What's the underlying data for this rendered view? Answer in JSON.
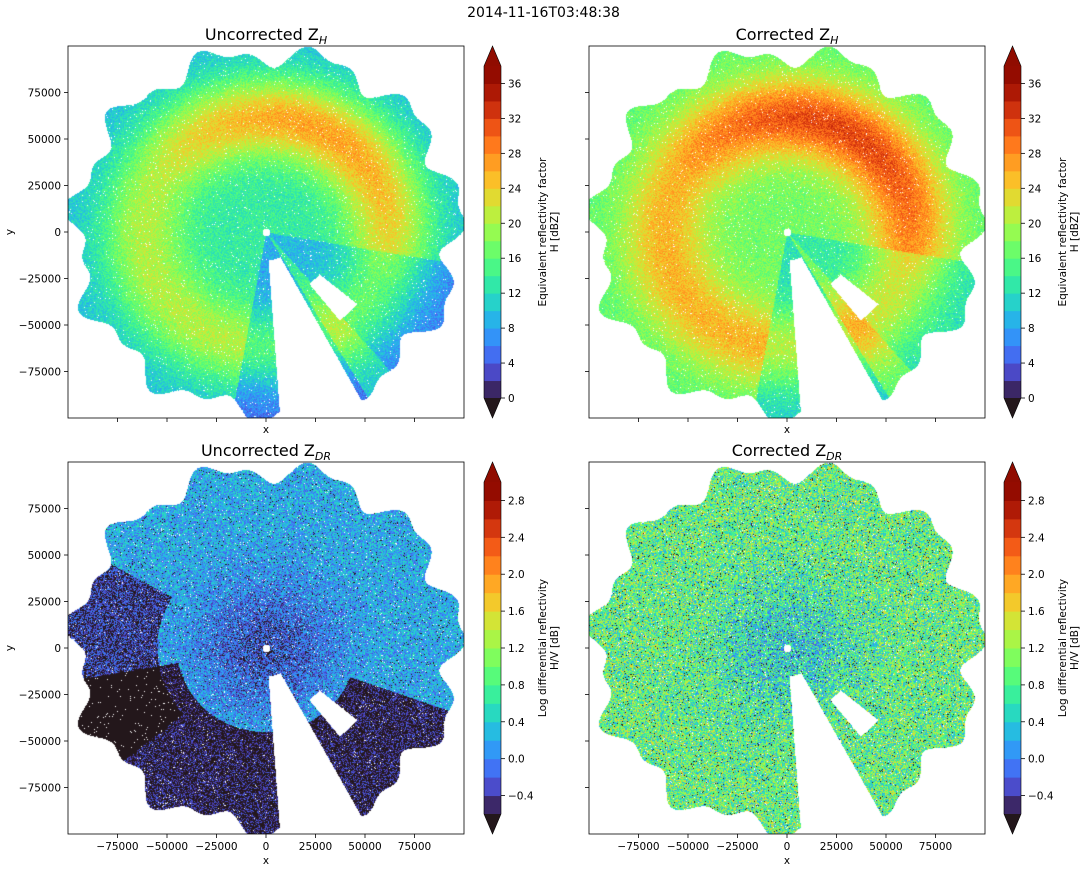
{
  "figure": {
    "suptitle": "2014-11-16T03:48:38"
  },
  "chart_data": [
    {
      "type": "heatmap",
      "title": "Uncorrected Z_H",
      "title_main": "Uncorrected Z",
      "title_sub": "H",
      "xlabel": "x",
      "ylabel": "y",
      "xlim": [
        -100000,
        100000
      ],
      "ylim": [
        -100000,
        100000
      ],
      "xticks": [
        -75000,
        -50000,
        -25000,
        0,
        25000,
        50000,
        75000
      ],
      "xtick_labels": [],
      "yticks": [
        75000,
        50000,
        25000,
        0,
        -25000,
        -50000,
        -75000
      ],
      "ytick_labels": [
        "75000",
        "50000",
        "25000",
        "0",
        "−25000",
        "−50000",
        "−75000"
      ],
      "field": "reflectivity",
      "colorbar": {
        "label_line1": "Equivalent reflectivity factor",
        "label_line2": "H [dBZ]",
        "vmin": 0,
        "vmax": 38,
        "step": 2,
        "ticks": [
          "0",
          "4",
          "8",
          "12",
          "16",
          "20",
          "24",
          "28",
          "32",
          "36"
        ],
        "tick_values": [
          0,
          4,
          8,
          12,
          16,
          20,
          24,
          28,
          32,
          36
        ],
        "extend": "both",
        "colormap": "turbo"
      }
    },
    {
      "type": "heatmap",
      "title": "Corrected Z_H",
      "title_main": "Corrected Z",
      "title_sub": "H",
      "xlabel": "x",
      "ylabel": "",
      "xlim": [
        -100000,
        100000
      ],
      "ylim": [
        -100000,
        100000
      ],
      "xticks": [
        -75000,
        -50000,
        -25000,
        0,
        25000,
        50000,
        75000
      ],
      "xtick_labels": [],
      "yticks": [
        75000,
        50000,
        25000,
        0,
        -25000,
        -50000,
        -75000
      ],
      "ytick_labels": [],
      "field": "reflectivity_corrected",
      "colorbar": {
        "label_line1": "Equivalent reflectivity factor",
        "label_line2": "H [dBZ]",
        "vmin": 0,
        "vmax": 38,
        "step": 2,
        "ticks": [
          "0",
          "4",
          "8",
          "12",
          "16",
          "20",
          "24",
          "28",
          "32",
          "36"
        ],
        "tick_values": [
          0,
          4,
          8,
          12,
          16,
          20,
          24,
          28,
          32,
          36
        ],
        "extend": "both",
        "colormap": "turbo"
      }
    },
    {
      "type": "heatmap",
      "title": "Uncorrected Z_DR",
      "title_main": "Uncorrected Z",
      "title_sub": "DR",
      "xlabel": "x",
      "ylabel": "y",
      "xlim": [
        -100000,
        100000
      ],
      "ylim": [
        -100000,
        100000
      ],
      "xticks": [
        -75000,
        -50000,
        -25000,
        0,
        25000,
        50000,
        75000
      ],
      "xtick_labels": [
        "−75000",
        "−50000",
        "−25000",
        "0",
        "25000",
        "50000",
        "75000"
      ],
      "yticks": [
        75000,
        50000,
        25000,
        0,
        -25000,
        -50000,
        -75000
      ],
      "ytick_labels": [
        "75000",
        "50000",
        "25000",
        "0",
        "−25000",
        "−50000",
        "−75000"
      ],
      "field": "differential_reflectivity",
      "colorbar": {
        "label_line1": "Log differential reflectivity",
        "label_line2": "H/V [dB]",
        "vmin": -0.6,
        "vmax": 3.0,
        "step": 0.2,
        "ticks": [
          "−0.4",
          "0.0",
          "0.4",
          "0.8",
          "1.2",
          "1.6",
          "2.0",
          "2.4",
          "2.8"
        ],
        "tick_values": [
          -0.4,
          0.0,
          0.4,
          0.8,
          1.2,
          1.6,
          2.0,
          2.4,
          2.8
        ],
        "extend": "both",
        "colormap": "turbo"
      }
    },
    {
      "type": "heatmap",
      "title": "Corrected Z_DR",
      "title_main": "Corrected Z",
      "title_sub": "DR",
      "xlabel": "x",
      "ylabel": "",
      "xlim": [
        -100000,
        100000
      ],
      "ylim": [
        -100000,
        100000
      ],
      "xticks": [
        -75000,
        -50000,
        -25000,
        0,
        25000,
        50000,
        75000
      ],
      "xtick_labels": [
        "−75000",
        "−50000",
        "−25000",
        "0",
        "25000",
        "50000",
        "75000"
      ],
      "yticks": [
        75000,
        50000,
        25000,
        0,
        -25000,
        -50000,
        -75000
      ],
      "ytick_labels": [],
      "field": "differential_reflectivity_corrected",
      "colorbar": {
        "label_line1": "Log differential reflectivity",
        "label_line2": "H/V [dB]",
        "vmin": -0.6,
        "vmax": 3.0,
        "step": 0.2,
        "ticks": [
          "−0.4",
          "0.0",
          "0.4",
          "0.8",
          "1.2",
          "1.6",
          "2.0",
          "2.4",
          "2.8"
        ],
        "tick_values": [
          -0.4,
          0.0,
          0.4,
          0.8,
          1.2,
          1.6,
          2.0,
          2.4,
          2.8
        ],
        "extend": "both",
        "colormap": "turbo"
      }
    }
  ]
}
